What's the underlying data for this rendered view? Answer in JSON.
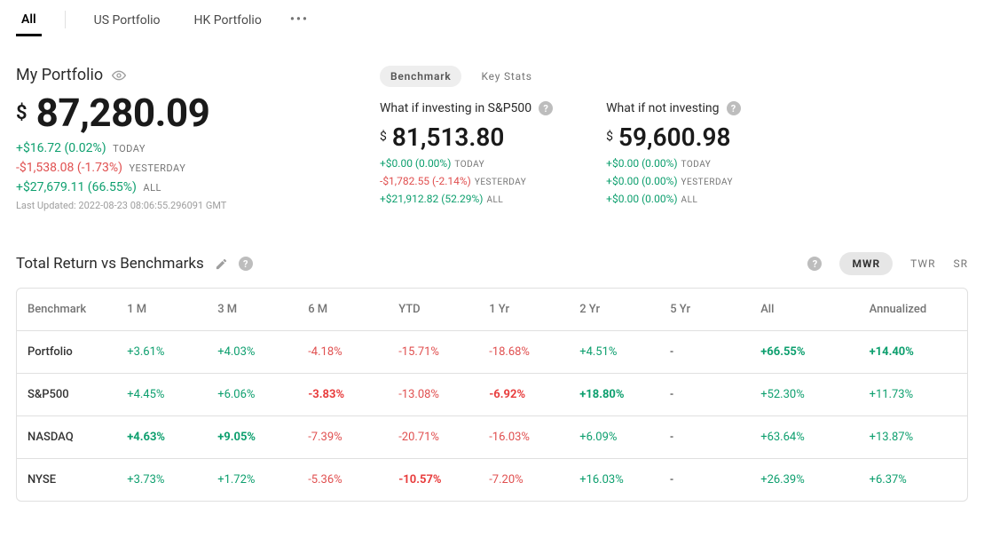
{
  "tabs": {
    "items": [
      {
        "label": "All",
        "active": true
      },
      {
        "label": "US Portfolio",
        "active": false
      },
      {
        "label": "HK Portfolio",
        "active": false
      }
    ]
  },
  "portfolio": {
    "title": "My Portfolio",
    "currency": "$",
    "value": "87,280.09",
    "today": {
      "text": "+$16.72 (0.02%)",
      "label": "TODAY",
      "dir": "pos"
    },
    "yesterday": {
      "text": "-$1,538.08 (-1.73%)",
      "label": "YESTERDAY",
      "dir": "neg"
    },
    "all": {
      "text": "+$27,679.11 (66.55%)",
      "label": "ALL",
      "dir": "pos"
    },
    "updated": "Last Updated: 2022-08-23 08:06:55.296091 GMT"
  },
  "chips": {
    "benchmark": "Benchmark",
    "keystats": "Key Stats"
  },
  "bench": [
    {
      "question": "What if investing in S&P500",
      "currency": "$",
      "value": "81,513.80",
      "today": {
        "text": "+$0.00 (0.00%)",
        "label": "TODAY",
        "dir": "pos"
      },
      "yesterday": {
        "text": "-$1,782.55 (-2.14%)",
        "label": "YESTERDAY",
        "dir": "neg"
      },
      "all": {
        "text": "+$21,912.82 (52.29%)",
        "label": "ALL",
        "dir": "pos"
      }
    },
    {
      "question": "What if not investing",
      "currency": "$",
      "value": "59,600.98",
      "today": {
        "text": "+$0.00 (0.00%)",
        "label": "TODAY",
        "dir": "pos"
      },
      "yesterday": {
        "text": "+$0.00 (0.00%)",
        "label": "YESTERDAY",
        "dir": "pos"
      },
      "all": {
        "text": "+$0.00 (0.00%)",
        "label": "ALL",
        "dir": "pos"
      }
    }
  ],
  "returns": {
    "title": "Total Return vs Benchmarks",
    "toggles": {
      "mwr": "MWR",
      "twr": "TWR",
      "sr": "SR"
    },
    "columns": [
      "Benchmark",
      "1 M",
      "3 M",
      "6 M",
      "YTD",
      "1 Yr",
      "2 Yr",
      "5 Yr",
      "All",
      "Annualized"
    ],
    "rows": [
      {
        "name": "Portfolio",
        "cells": [
          {
            "text": "+3.61%",
            "dir": "pos",
            "bold": false
          },
          {
            "text": "+4.03%",
            "dir": "pos",
            "bold": false
          },
          {
            "text": "-4.18%",
            "dir": "neg",
            "bold": false
          },
          {
            "text": "-15.71%",
            "dir": "neg",
            "bold": false
          },
          {
            "text": "-18.68%",
            "dir": "neg",
            "bold": false
          },
          {
            "text": "+4.51%",
            "dir": "pos",
            "bold": false
          },
          {
            "text": "-",
            "dir": "",
            "bold": false
          },
          {
            "text": "+66.55%",
            "dir": "pos",
            "bold": true
          },
          {
            "text": "+14.40%",
            "dir": "pos",
            "bold": true
          }
        ]
      },
      {
        "name": "S&P500",
        "cells": [
          {
            "text": "+4.45%",
            "dir": "pos",
            "bold": false
          },
          {
            "text": "+6.06%",
            "dir": "pos",
            "bold": false
          },
          {
            "text": "-3.83%",
            "dir": "neg",
            "bold": true
          },
          {
            "text": "-13.08%",
            "dir": "neg",
            "bold": false
          },
          {
            "text": "-6.92%",
            "dir": "neg",
            "bold": true
          },
          {
            "text": "+18.80%",
            "dir": "pos",
            "bold": true
          },
          {
            "text": "-",
            "dir": "",
            "bold": false
          },
          {
            "text": "+52.30%",
            "dir": "pos",
            "bold": false
          },
          {
            "text": "+11.73%",
            "dir": "pos",
            "bold": false
          }
        ]
      },
      {
        "name": "NASDAQ",
        "cells": [
          {
            "text": "+4.63%",
            "dir": "pos",
            "bold": true
          },
          {
            "text": "+9.05%",
            "dir": "pos",
            "bold": true
          },
          {
            "text": "-7.39%",
            "dir": "neg",
            "bold": false
          },
          {
            "text": "-20.71%",
            "dir": "neg",
            "bold": false
          },
          {
            "text": "-16.03%",
            "dir": "neg",
            "bold": false
          },
          {
            "text": "+6.09%",
            "dir": "pos",
            "bold": false
          },
          {
            "text": "-",
            "dir": "",
            "bold": false
          },
          {
            "text": "+63.64%",
            "dir": "pos",
            "bold": false
          },
          {
            "text": "+13.87%",
            "dir": "pos",
            "bold": false
          }
        ]
      },
      {
        "name": "NYSE",
        "cells": [
          {
            "text": "+3.73%",
            "dir": "pos",
            "bold": false
          },
          {
            "text": "+1.72%",
            "dir": "pos",
            "bold": false
          },
          {
            "text": "-5.36%",
            "dir": "neg",
            "bold": false
          },
          {
            "text": "-10.57%",
            "dir": "neg",
            "bold": true
          },
          {
            "text": "-7.20%",
            "dir": "neg",
            "bold": false
          },
          {
            "text": "+16.03%",
            "dir": "pos",
            "bold": false
          },
          {
            "text": "-",
            "dir": "",
            "bold": false
          },
          {
            "text": "+26.39%",
            "dir": "pos",
            "bold": false
          },
          {
            "text": "+6.37%",
            "dir": "pos",
            "bold": false
          }
        ]
      }
    ]
  }
}
